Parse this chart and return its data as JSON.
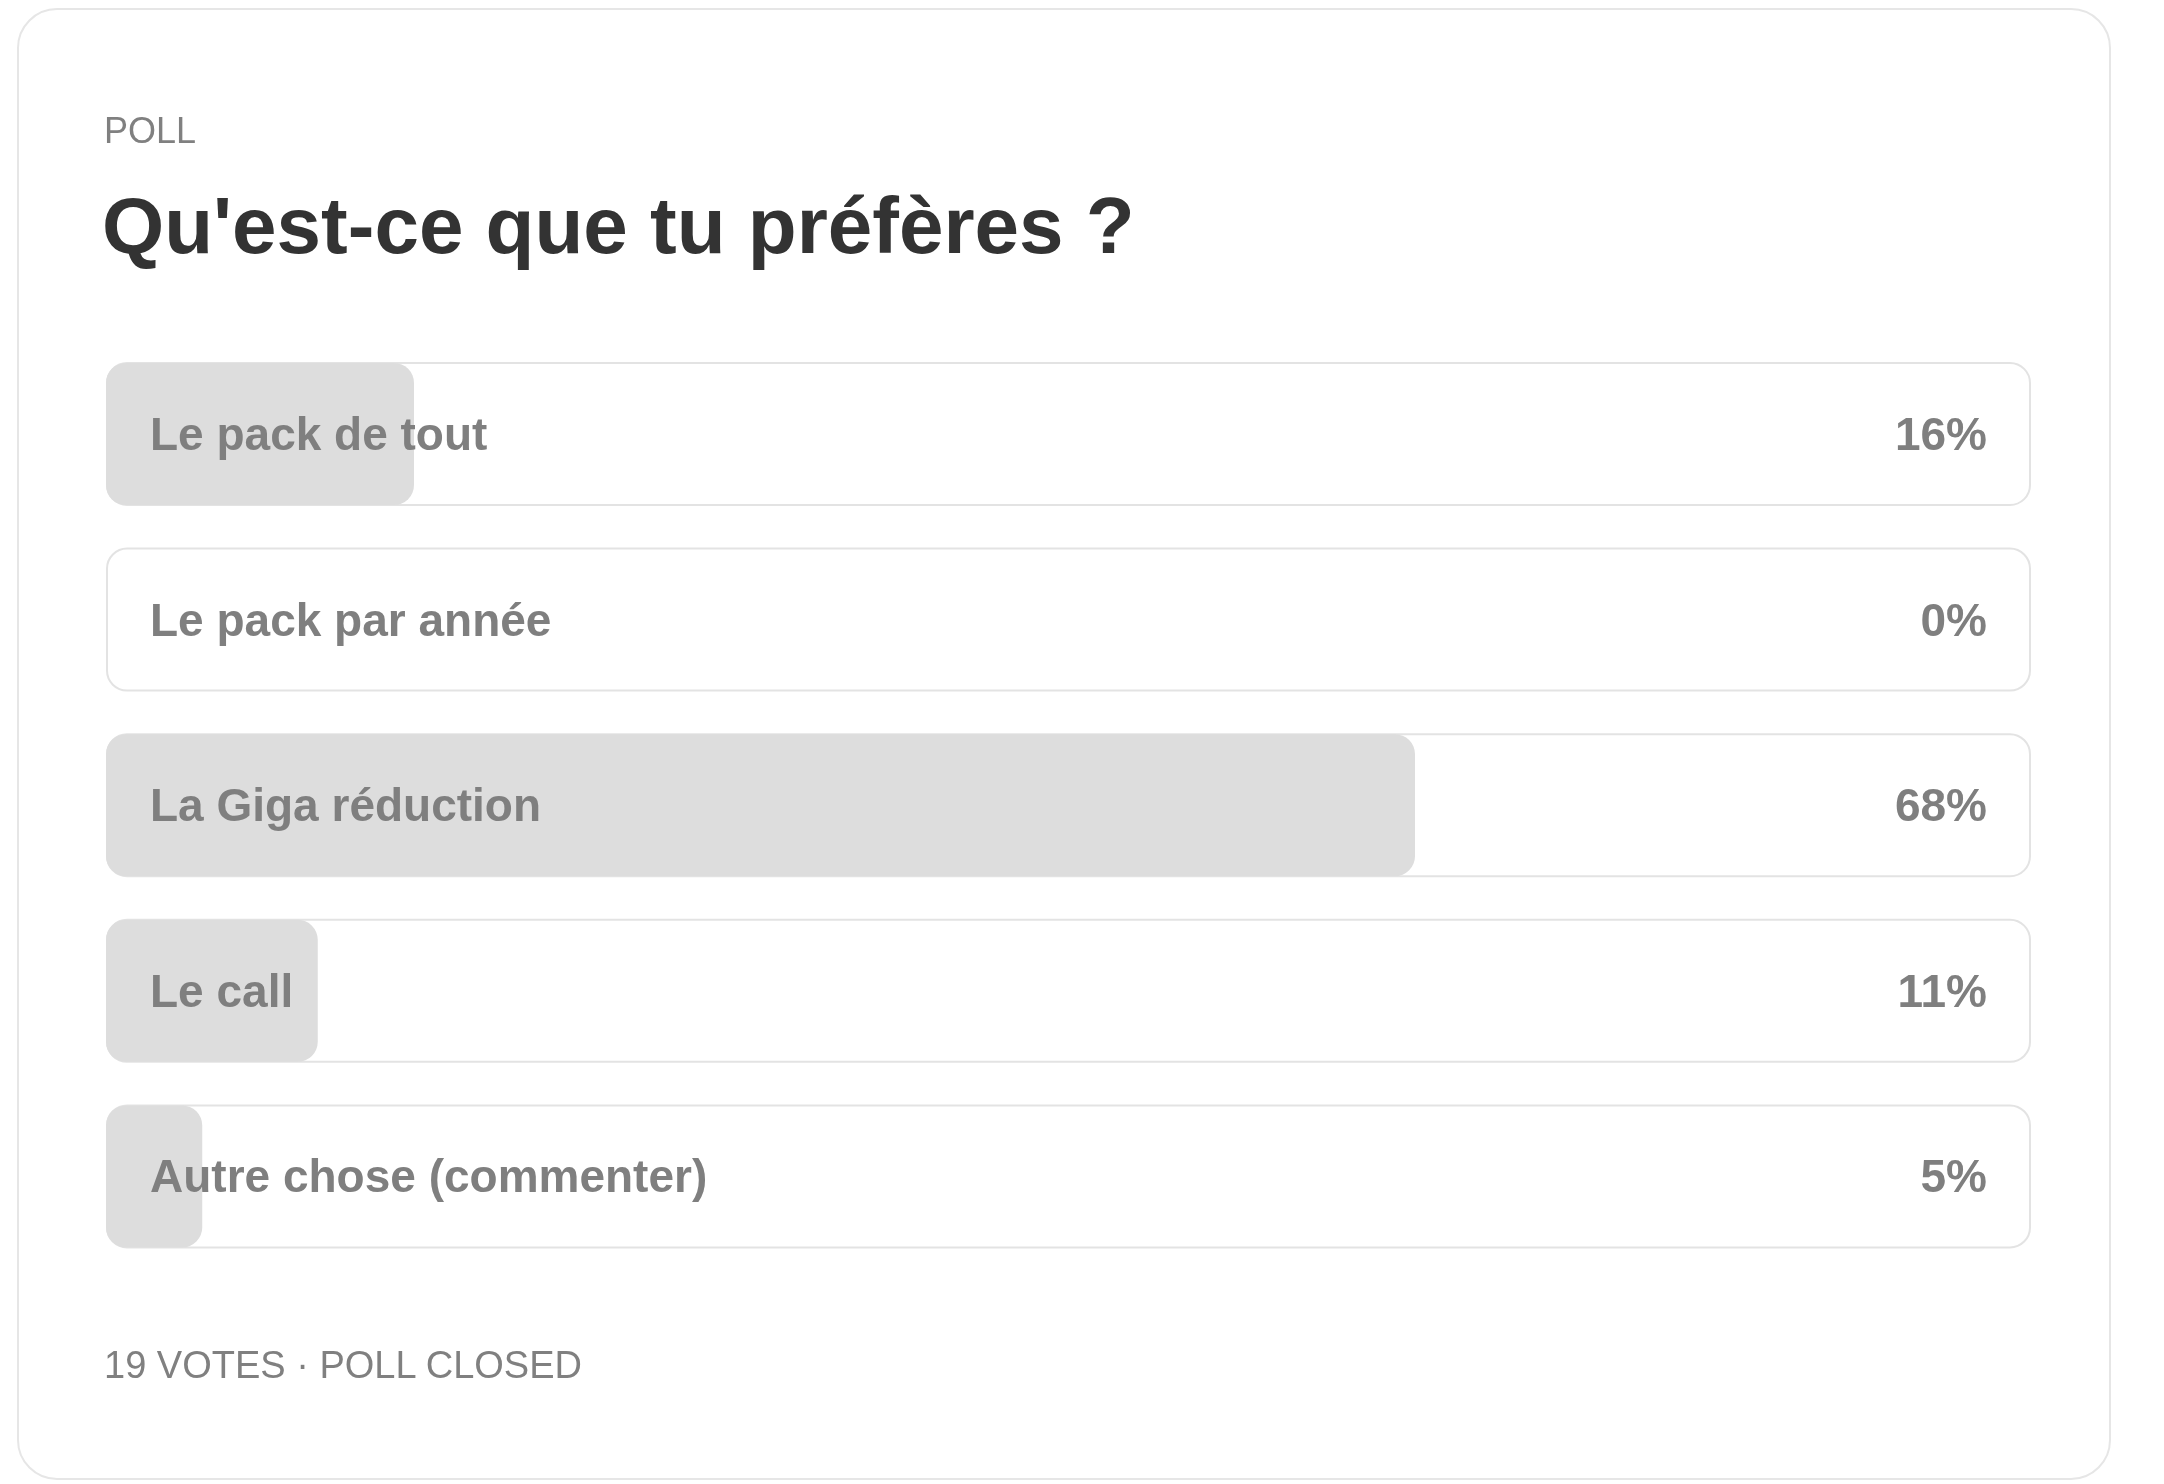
{
  "chart_data": {
    "type": "bar",
    "orientation": "horizontal",
    "subtitle": "POLL",
    "title": "Qu'est-ce que tu préfères ?",
    "categories": [
      "Le pack de tout",
      "Le pack par année",
      "La Giga réduction",
      "Le call",
      "Autre chose (commenter)"
    ],
    "values": [
      16,
      0,
      68,
      11,
      5
    ],
    "value_labels": [
      "16%",
      "0%",
      "68%",
      "11%",
      "5%"
    ],
    "color": "#dddddd",
    "tick_labels": false,
    "annotations": [
      "19 VOTES · POLL CLOSED"
    ]
  }
}
